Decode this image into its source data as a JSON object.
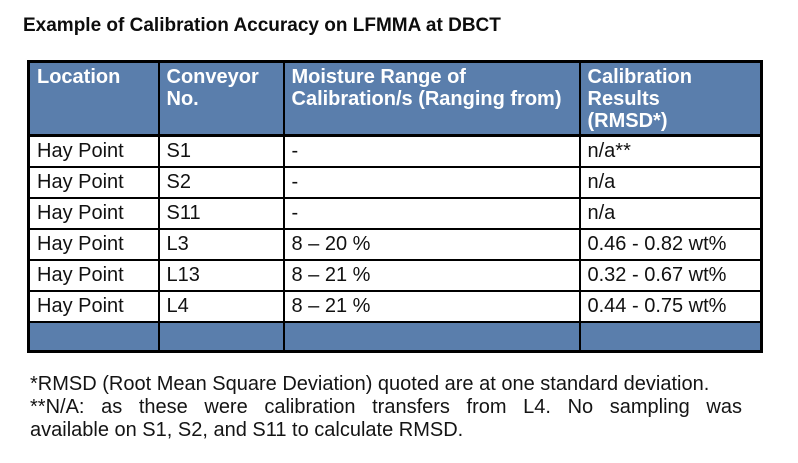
{
  "title": "Example of Calibration Accuracy on LFMMA at DBCT",
  "table": {
    "headers": [
      "Location",
      "Conveyor\nNo.",
      "Moisture Range of\nCalibration/s (Ranging from)",
      "Calibration\nResults\n(RMSD*)"
    ],
    "rows": [
      [
        "Hay Point",
        "S1",
        "-",
        "n/a**"
      ],
      [
        "Hay Point",
        "S2",
        "-",
        "n/a"
      ],
      [
        "Hay Point",
        "S11",
        "-",
        "n/a"
      ],
      [
        "Hay Point",
        "L3",
        "8 – 20 %",
        "0.46 - 0.82 wt%"
      ],
      [
        "Hay Point",
        "L13",
        "8 – 21 %",
        "0.32 - 0.67 wt%"
      ],
      [
        "Hay Point",
        "L4",
        "8 – 21 %",
        "0.44 - 0.75 wt%"
      ]
    ]
  },
  "footnotes": [
    {
      "lines": [
        "*RMSD (Root Mean Square Deviation) quoted are at one standard deviation."
      ]
    },
    {
      "lines": [
        "**N/A: as these were calibration transfers from L4. No sampling was",
        "available on S1, S2, and S11 to calculate RMSD."
      ]
    }
  ],
  "colors": {
    "header_bg": "#5A7EAC",
    "border": "#000000",
    "text": "#111111"
  }
}
